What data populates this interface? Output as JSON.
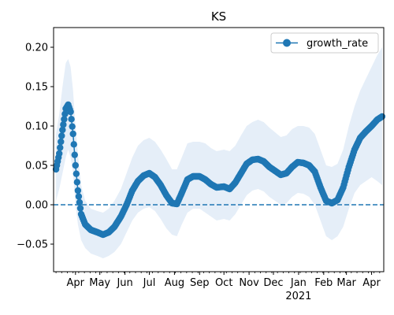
{
  "chart_data": {
    "type": "line",
    "title": "KS",
    "xlabel": "",
    "ylabel": "",
    "legend": {
      "placement": "top-right",
      "entries": [
        "growth_rate"
      ]
    },
    "x_start": "2020-03-08",
    "x_end": "2021-04-16",
    "xlim": [
      "2020-03-05",
      "2021-04-16"
    ],
    "ylim": [
      -0.085,
      0.225
    ],
    "x_ticks": [
      {
        "date": "2020-04-01",
        "label": "Apr"
      },
      {
        "date": "2020-05-01",
        "label": "May"
      },
      {
        "date": "2020-06-01",
        "label": "Jun"
      },
      {
        "date": "2020-07-01",
        "label": "Jul"
      },
      {
        "date": "2020-08-01",
        "label": "Aug"
      },
      {
        "date": "2020-09-01",
        "label": "Sep"
      },
      {
        "date": "2020-10-01",
        "label": "Oct"
      },
      {
        "date": "2020-11-01",
        "label": "Nov"
      },
      {
        "date": "2020-12-01",
        "label": "Dec"
      },
      {
        "date": "2021-01-01",
        "label": "Jan",
        "sublabel": "2021"
      },
      {
        "date": "2021-02-01",
        "label": "Feb"
      },
      {
        "date": "2021-03-01",
        "label": "Mar"
      },
      {
        "date": "2021-04-01",
        "label": "Apr"
      }
    ],
    "y_ticks": [
      -0.05,
      0.0,
      0.05,
      0.1,
      0.15,
      0.2
    ],
    "y_tick_labels": [
      "−0.05",
      "0.00",
      "0.05",
      "0.10",
      "0.15",
      "0.20"
    ],
    "reference_line": {
      "y": 0.0,
      "style": "dashed"
    },
    "series": [
      {
        "name": "growth_rate",
        "marker": "circle",
        "color": "#1f77b4",
        "band_color": "#dce8f5",
        "points": [
          {
            "x": "2020-03-08",
            "y": 0.045,
            "lo": 0.005,
            "hi": 0.09
          },
          {
            "x": "2020-03-12",
            "y": 0.065,
            "lo": 0.02,
            "hi": 0.115
          },
          {
            "x": "2020-03-16",
            "y": 0.095,
            "lo": 0.04,
            "hi": 0.15
          },
          {
            "x": "2020-03-20",
            "y": 0.122,
            "lo": 0.06,
            "hi": 0.18
          },
          {
            "x": "2020-03-23",
            "y": 0.127,
            "lo": 0.07,
            "hi": 0.185
          },
          {
            "x": "2020-03-26",
            "y": 0.118,
            "lo": 0.06,
            "hi": 0.175
          },
          {
            "x": "2020-03-29",
            "y": 0.09,
            "lo": 0.04,
            "hi": 0.145
          },
          {
            "x": "2020-04-01",
            "y": 0.05,
            "lo": 0.0,
            "hi": 0.1
          },
          {
            "x": "2020-04-04",
            "y": 0.018,
            "lo": -0.025,
            "hi": 0.065
          },
          {
            "x": "2020-04-08",
            "y": -0.012,
            "lo": -0.045,
            "hi": 0.025
          },
          {
            "x": "2020-04-13",
            "y": -0.025,
            "lo": -0.055,
            "hi": 0.005
          },
          {
            "x": "2020-04-20",
            "y": -0.032,
            "lo": -0.062,
            "hi": -0.005
          },
          {
            "x": "2020-04-28",
            "y": -0.035,
            "lo": -0.065,
            "hi": -0.008
          },
          {
            "x": "2020-05-05",
            "y": -0.038,
            "lo": -0.068,
            "hi": -0.01
          },
          {
            "x": "2020-05-12",
            "y": -0.035,
            "lo": -0.065,
            "hi": -0.005
          },
          {
            "x": "2020-05-19",
            "y": -0.028,
            "lo": -0.06,
            "hi": 0.005
          },
          {
            "x": "2020-05-27",
            "y": -0.015,
            "lo": -0.05,
            "hi": 0.02
          },
          {
            "x": "2020-06-03",
            "y": 0.0,
            "lo": -0.035,
            "hi": 0.04
          },
          {
            "x": "2020-06-10",
            "y": 0.018,
            "lo": -0.02,
            "hi": 0.06
          },
          {
            "x": "2020-06-17",
            "y": 0.03,
            "lo": -0.01,
            "hi": 0.075
          },
          {
            "x": "2020-06-24",
            "y": 0.037,
            "lo": -0.005,
            "hi": 0.082
          },
          {
            "x": "2020-07-01",
            "y": 0.04,
            "lo": -0.003,
            "hi": 0.085
          },
          {
            "x": "2020-07-08",
            "y": 0.035,
            "lo": -0.008,
            "hi": 0.08
          },
          {
            "x": "2020-07-15",
            "y": 0.025,
            "lo": -0.018,
            "hi": 0.07
          },
          {
            "x": "2020-07-22",
            "y": 0.012,
            "lo": -0.03,
            "hi": 0.058
          },
          {
            "x": "2020-07-29",
            "y": 0.002,
            "lo": -0.038,
            "hi": 0.045
          },
          {
            "x": "2020-08-04",
            "y": 0.001,
            "lo": -0.04,
            "hi": 0.045
          },
          {
            "x": "2020-08-10",
            "y": 0.015,
            "lo": -0.025,
            "hi": 0.06
          },
          {
            "x": "2020-08-17",
            "y": 0.032,
            "lo": -0.01,
            "hi": 0.078
          },
          {
            "x": "2020-08-24",
            "y": 0.036,
            "lo": -0.005,
            "hi": 0.08
          },
          {
            "x": "2020-09-01",
            "y": 0.036,
            "lo": -0.005,
            "hi": 0.08
          },
          {
            "x": "2020-09-08",
            "y": 0.032,
            "lo": -0.01,
            "hi": 0.078
          },
          {
            "x": "2020-09-15",
            "y": 0.026,
            "lo": -0.015,
            "hi": 0.072
          },
          {
            "x": "2020-09-22",
            "y": 0.022,
            "lo": -0.02,
            "hi": 0.068
          },
          {
            "x": "2020-10-01",
            "y": 0.023,
            "lo": -0.018,
            "hi": 0.07
          },
          {
            "x": "2020-10-08",
            "y": 0.02,
            "lo": -0.02,
            "hi": 0.068
          },
          {
            "x": "2020-10-15",
            "y": 0.028,
            "lo": -0.012,
            "hi": 0.075
          },
          {
            "x": "2020-10-22",
            "y": 0.04,
            "lo": 0.0,
            "hi": 0.088
          },
          {
            "x": "2020-10-29",
            "y": 0.052,
            "lo": 0.012,
            "hi": 0.1
          },
          {
            "x": "2020-11-05",
            "y": 0.057,
            "lo": 0.018,
            "hi": 0.105
          },
          {
            "x": "2020-11-12",
            "y": 0.058,
            "lo": 0.02,
            "hi": 0.108
          },
          {
            "x": "2020-11-19",
            "y": 0.055,
            "lo": 0.017,
            "hi": 0.105
          },
          {
            "x": "2020-11-26",
            "y": 0.048,
            "lo": 0.01,
            "hi": 0.098
          },
          {
            "x": "2020-12-03",
            "y": 0.043,
            "lo": 0.005,
            "hi": 0.092
          },
          {
            "x": "2020-12-10",
            "y": 0.038,
            "lo": 0.0,
            "hi": 0.086
          },
          {
            "x": "2020-12-17",
            "y": 0.04,
            "lo": 0.002,
            "hi": 0.088
          },
          {
            "x": "2020-12-24",
            "y": 0.048,
            "lo": 0.01,
            "hi": 0.096
          },
          {
            "x": "2020-12-31",
            "y": 0.054,
            "lo": 0.015,
            "hi": 0.1
          },
          {
            "x": "2021-01-07",
            "y": 0.053,
            "lo": 0.014,
            "hi": 0.1
          },
          {
            "x": "2021-01-14",
            "y": 0.05,
            "lo": 0.01,
            "hi": 0.098
          },
          {
            "x": "2021-01-21",
            "y": 0.042,
            "lo": 0.0,
            "hi": 0.09
          },
          {
            "x": "2021-01-28",
            "y": 0.022,
            "lo": -0.02,
            "hi": 0.07
          },
          {
            "x": "2021-02-04",
            "y": 0.005,
            "lo": -0.04,
            "hi": 0.05
          },
          {
            "x": "2021-02-11",
            "y": 0.002,
            "lo": -0.045,
            "hi": 0.048
          },
          {
            "x": "2021-02-18",
            "y": 0.006,
            "lo": -0.04,
            "hi": 0.052
          },
          {
            "x": "2021-02-25",
            "y": 0.022,
            "lo": -0.028,
            "hi": 0.07
          },
          {
            "x": "2021-03-04",
            "y": 0.048,
            "lo": -0.005,
            "hi": 0.1
          },
          {
            "x": "2021-03-11",
            "y": 0.07,
            "lo": 0.015,
            "hi": 0.125
          },
          {
            "x": "2021-03-18",
            "y": 0.085,
            "lo": 0.025,
            "hi": 0.145
          },
          {
            "x": "2021-03-25",
            "y": 0.093,
            "lo": 0.03,
            "hi": 0.16
          },
          {
            "x": "2021-04-01",
            "y": 0.1,
            "lo": 0.035,
            "hi": 0.175
          },
          {
            "x": "2021-04-08",
            "y": 0.108,
            "lo": 0.03,
            "hi": 0.19
          },
          {
            "x": "2021-04-14",
            "y": 0.112,
            "lo": 0.025,
            "hi": 0.2
          }
        ]
      }
    ]
  }
}
